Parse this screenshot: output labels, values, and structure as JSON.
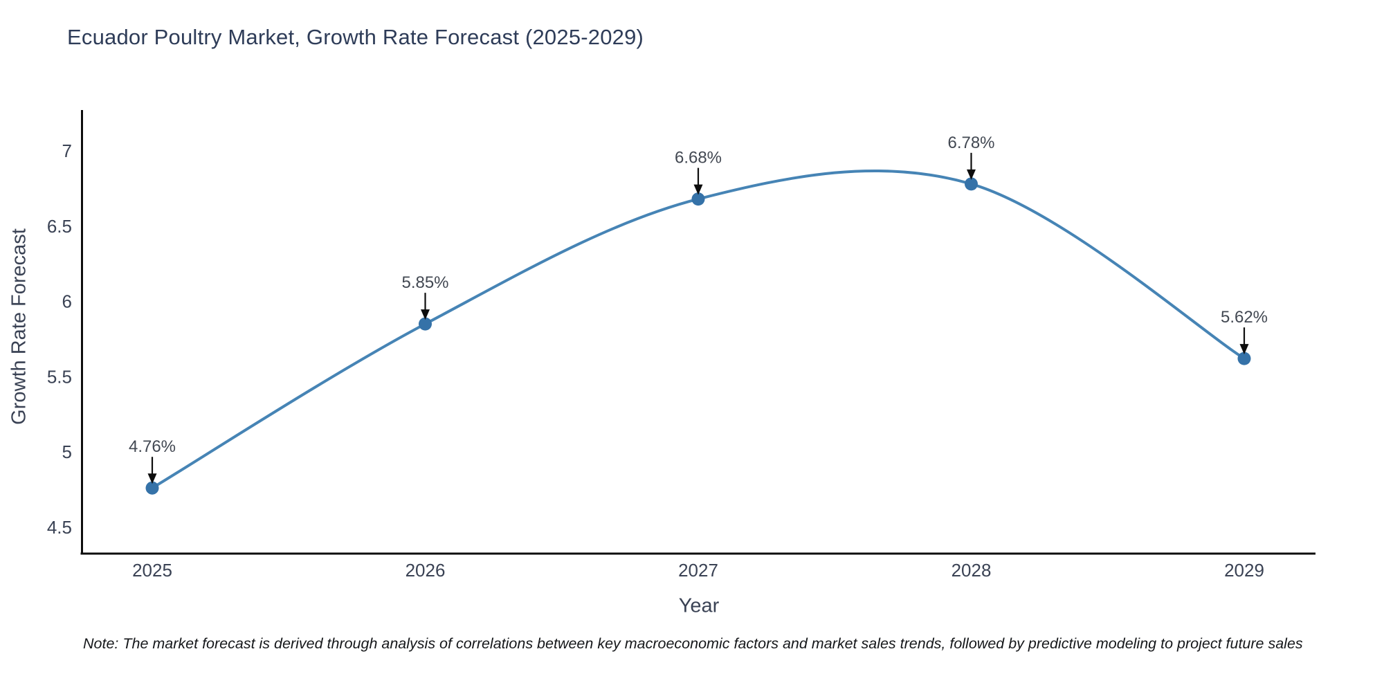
{
  "chart_data": {
    "type": "line",
    "line_shape": "spline",
    "title": "Ecuador Poultry Market, Growth Rate Forecast (2025-2029)",
    "xlabel": "Year",
    "ylabel": "Growth Rate Forecast",
    "categories": [
      "2025",
      "2026",
      "2027",
      "2028",
      "2029"
    ],
    "values": [
      4.76,
      5.85,
      6.68,
      6.78,
      5.62
    ],
    "point_labels": [
      "4.76%",
      "5.85%",
      "6.68%",
      "6.78%",
      "5.62%"
    ],
    "yticks": [
      7,
      6.5,
      6,
      5.5,
      5,
      4.5
    ],
    "ylim": [
      4.32,
      7.27
    ],
    "grid": false,
    "legend": false,
    "annotations_with_arrows": true,
    "note": "Note: The market forecast is derived through analysis of correlations between key macroeconomic factors and market sales trends, followed by predictive modeling to project future sales",
    "colors": {
      "line": "#4684b5",
      "marker": "#3572a8",
      "axis_line": "#0d0d0d",
      "title_text": "#2e3c58",
      "axis_text": "#3a4254",
      "annotation_text": "#424852",
      "arrow": "#0d0d0d",
      "background": "#ffffff"
    }
  }
}
